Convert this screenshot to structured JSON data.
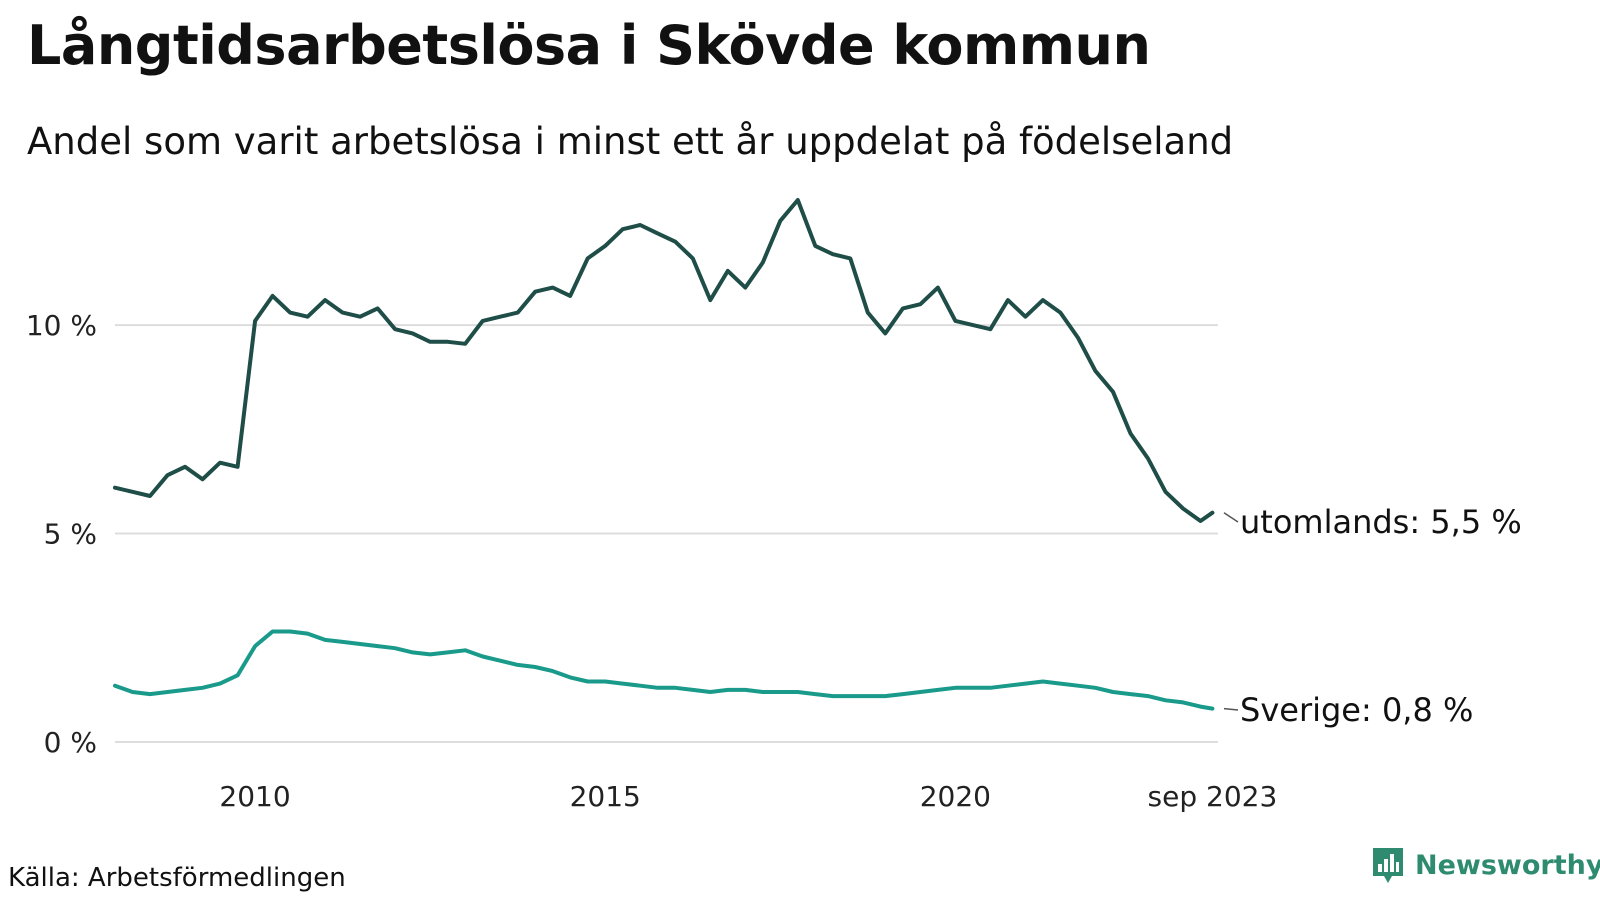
{
  "title": "Långtidsarbetslösa i Skövde kommun",
  "subtitle": "Andel som varit arbetslösa i minst ett år uppdelat på födelseland",
  "source": "Källa: Arbetsförmedlingen",
  "brand": {
    "name": "Newsworthy",
    "icon": "newsworthy-logo-icon",
    "color": "#2e8b6f"
  },
  "colors": {
    "grid": "#dddddd",
    "text": "#222222"
  },
  "chart_data": {
    "type": "line",
    "title": "Långtidsarbetslösa i Skövde kommun",
    "xlabel": "",
    "ylabel": "",
    "xlim": [
      2008.0,
      2023.75
    ],
    "ylim": [
      0,
      13
    ],
    "yticks": [
      {
        "value": 0,
        "label": "0 %"
      },
      {
        "value": 5,
        "label": "5 %"
      },
      {
        "value": 10,
        "label": "10 %"
      }
    ],
    "xticks": [
      {
        "value": 2010,
        "label": "2010"
      },
      {
        "value": 2015,
        "label": "2015"
      },
      {
        "value": 2020,
        "label": "2020"
      },
      {
        "value": 2023.67,
        "label": "sep 2023"
      }
    ],
    "grid": true,
    "series": [
      {
        "name": "utomlands",
        "end_label": "utomlands: 5,5 %",
        "color": "#1f4d47",
        "points": [
          [
            2008.0,
            6.1
          ],
          [
            2008.25,
            6.0
          ],
          [
            2008.5,
            5.9
          ],
          [
            2008.75,
            6.4
          ],
          [
            2009.0,
            6.6
          ],
          [
            2009.25,
            6.3
          ],
          [
            2009.5,
            6.7
          ],
          [
            2009.75,
            6.6
          ],
          [
            2010.0,
            10.1
          ],
          [
            2010.25,
            10.7
          ],
          [
            2010.5,
            10.3
          ],
          [
            2010.75,
            10.2
          ],
          [
            2011.0,
            10.6
          ],
          [
            2011.25,
            10.3
          ],
          [
            2011.5,
            10.2
          ],
          [
            2011.75,
            10.4
          ],
          [
            2012.0,
            9.9
          ],
          [
            2012.25,
            9.8
          ],
          [
            2012.5,
            9.6
          ],
          [
            2012.75,
            9.6
          ],
          [
            2013.0,
            9.55
          ],
          [
            2013.25,
            10.1
          ],
          [
            2013.5,
            10.2
          ],
          [
            2013.75,
            10.3
          ],
          [
            2014.0,
            10.8
          ],
          [
            2014.25,
            10.9
          ],
          [
            2014.5,
            10.7
          ],
          [
            2014.75,
            11.6
          ],
          [
            2015.0,
            11.9
          ],
          [
            2015.25,
            12.3
          ],
          [
            2015.5,
            12.4
          ],
          [
            2015.75,
            12.2
          ],
          [
            2016.0,
            12.0
          ],
          [
            2016.25,
            11.6
          ],
          [
            2016.5,
            10.6
          ],
          [
            2016.75,
            11.3
          ],
          [
            2017.0,
            10.9
          ],
          [
            2017.25,
            11.5
          ],
          [
            2017.5,
            12.5
          ],
          [
            2017.75,
            13.0
          ],
          [
            2018.0,
            11.9
          ],
          [
            2018.25,
            11.7
          ],
          [
            2018.5,
            11.6
          ],
          [
            2018.75,
            10.3
          ],
          [
            2019.0,
            9.8
          ],
          [
            2019.25,
            10.4
          ],
          [
            2019.5,
            10.5
          ],
          [
            2019.75,
            10.9
          ],
          [
            2020.0,
            10.1
          ],
          [
            2020.25,
            10.0
          ],
          [
            2020.5,
            9.9
          ],
          [
            2020.75,
            10.6
          ],
          [
            2021.0,
            10.2
          ],
          [
            2021.25,
            10.6
          ],
          [
            2021.5,
            10.3
          ],
          [
            2021.75,
            9.7
          ],
          [
            2022.0,
            8.9
          ],
          [
            2022.25,
            8.4
          ],
          [
            2022.5,
            7.4
          ],
          [
            2022.75,
            6.8
          ],
          [
            2023.0,
            6.0
          ],
          [
            2023.25,
            5.6
          ],
          [
            2023.5,
            5.3
          ],
          [
            2023.67,
            5.5
          ]
        ]
      },
      {
        "name": "Sverige",
        "end_label": "Sverige: 0,8 %",
        "color": "#1a9a8a",
        "points": [
          [
            2008.0,
            1.35
          ],
          [
            2008.25,
            1.2
          ],
          [
            2008.5,
            1.15
          ],
          [
            2008.75,
            1.2
          ],
          [
            2009.0,
            1.25
          ],
          [
            2009.25,
            1.3
          ],
          [
            2009.5,
            1.4
          ],
          [
            2009.75,
            1.6
          ],
          [
            2010.0,
            2.3
          ],
          [
            2010.25,
            2.65
          ],
          [
            2010.5,
            2.65
          ],
          [
            2010.75,
            2.6
          ],
          [
            2011.0,
            2.45
          ],
          [
            2011.25,
            2.4
          ],
          [
            2011.5,
            2.35
          ],
          [
            2011.75,
            2.3
          ],
          [
            2012.0,
            2.25
          ],
          [
            2012.25,
            2.15
          ],
          [
            2012.5,
            2.1
          ],
          [
            2012.75,
            2.15
          ],
          [
            2013.0,
            2.2
          ],
          [
            2013.25,
            2.05
          ],
          [
            2013.5,
            1.95
          ],
          [
            2013.75,
            1.85
          ],
          [
            2014.0,
            1.8
          ],
          [
            2014.25,
            1.7
          ],
          [
            2014.5,
            1.55
          ],
          [
            2014.75,
            1.45
          ],
          [
            2015.0,
            1.45
          ],
          [
            2015.25,
            1.4
          ],
          [
            2015.5,
            1.35
          ],
          [
            2015.75,
            1.3
          ],
          [
            2016.0,
            1.3
          ],
          [
            2016.25,
            1.25
          ],
          [
            2016.5,
            1.2
          ],
          [
            2016.75,
            1.25
          ],
          [
            2017.0,
            1.25
          ],
          [
            2017.25,
            1.2
          ],
          [
            2017.5,
            1.2
          ],
          [
            2017.75,
            1.2
          ],
          [
            2018.0,
            1.15
          ],
          [
            2018.25,
            1.1
          ],
          [
            2018.5,
            1.1
          ],
          [
            2018.75,
            1.1
          ],
          [
            2019.0,
            1.1
          ],
          [
            2019.25,
            1.15
          ],
          [
            2019.5,
            1.2
          ],
          [
            2019.75,
            1.25
          ],
          [
            2020.0,
            1.3
          ],
          [
            2020.25,
            1.3
          ],
          [
            2020.5,
            1.3
          ],
          [
            2020.75,
            1.35
          ],
          [
            2021.0,
            1.4
          ],
          [
            2021.25,
            1.45
          ],
          [
            2021.5,
            1.4
          ],
          [
            2021.75,
            1.35
          ],
          [
            2022.0,
            1.3
          ],
          [
            2022.25,
            1.2
          ],
          [
            2022.5,
            1.15
          ],
          [
            2022.75,
            1.1
          ],
          [
            2023.0,
            1.0
          ],
          [
            2023.25,
            0.95
          ],
          [
            2023.5,
            0.85
          ],
          [
            2023.67,
            0.8
          ]
        ]
      }
    ]
  }
}
